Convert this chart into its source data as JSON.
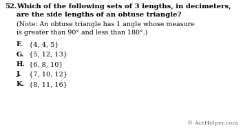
{
  "question_number": "52.",
  "question_text": "Which of the following sets of 3 lengths, in decimeters,\nare the side lengths of an obtuse triangle?",
  "note_text": "(Note: An obtuse triangle has 1 angle whose measure\nis greater than 90° and less than 180°.)",
  "choices": [
    {
      "label": "F.",
      "text": "{4, 4, 5}"
    },
    {
      "label": "G.",
      "text": "{5, 12, 13}"
    },
    {
      "label": "H.",
      "text": "{6, 8, 10}"
    },
    {
      "label": "J.",
      "text": "{7, 10, 12}"
    },
    {
      "label": "K.",
      "text": "{8, 11, 16}"
    }
  ],
  "copyright": "© ActHelper.com",
  "bg_color": "#ffffff",
  "text_color": "#000000",
  "font_size_question": 7.2,
  "font_size_note": 6.8,
  "font_size_choices": 7.0,
  "font_size_copyright": 6.0
}
